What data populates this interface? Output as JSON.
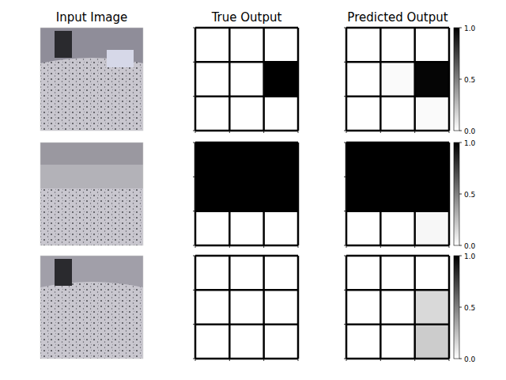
{
  "image_column": {
    "title": "Input Image"
  },
  "chart_data": [
    {
      "type": "heatmap",
      "title": "True Output",
      "tick_labels": false,
      "zlim": [
        0,
        1
      ],
      "cells": [
        [
          0,
          0,
          0
        ],
        [
          0,
          0,
          1
        ],
        [
          0,
          0,
          0
        ]
      ]
    },
    {
      "type": "heatmap",
      "title": "Predicted Output",
      "tick_labels": false,
      "zlim": [
        0,
        1
      ],
      "zticks": [
        {
          "value": 0,
          "label": "0.0"
        },
        {
          "value": 0.5,
          "label": "0.5"
        },
        {
          "value": 1,
          "label": "1.0"
        }
      ],
      "cells": [
        [
          0,
          0,
          0
        ],
        [
          0,
          0.02,
          0.98
        ],
        [
          0,
          0,
          0.02
        ]
      ]
    },
    {
      "type": "heatmap",
      "tick_labels": false,
      "zlim": [
        0,
        1
      ],
      "cells": [
        [
          1,
          1,
          1
        ],
        [
          1,
          1,
          1
        ],
        [
          0,
          0,
          0
        ]
      ]
    },
    {
      "type": "heatmap",
      "tick_labels": false,
      "zlim": [
        0,
        1
      ],
      "zticks": [
        {
          "value": 0,
          "label": "0.0"
        },
        {
          "value": 0.5,
          "label": "0.5"
        },
        {
          "value": 1,
          "label": "1.0"
        }
      ],
      "cells": [
        [
          1,
          1,
          1
        ],
        [
          1,
          1,
          1
        ],
        [
          0,
          0,
          0.03
        ]
      ]
    },
    {
      "type": "heatmap",
      "tick_labels": false,
      "zlim": [
        0,
        1
      ],
      "cells": [
        [
          0,
          0,
          0
        ],
        [
          0,
          0,
          0
        ],
        [
          0,
          0,
          0
        ]
      ]
    },
    {
      "type": "heatmap",
      "tick_labels": false,
      "zlim": [
        0,
        1
      ],
      "zticks": [
        {
          "value": 0,
          "label": "0.0"
        },
        {
          "value": 0.5,
          "label": "0.5"
        },
        {
          "value": 1,
          "label": "1.0"
        }
      ],
      "cells": [
        [
          0,
          0,
          0
        ],
        [
          0,
          0,
          0.15
        ],
        [
          0,
          0,
          0.2
        ]
      ]
    }
  ]
}
